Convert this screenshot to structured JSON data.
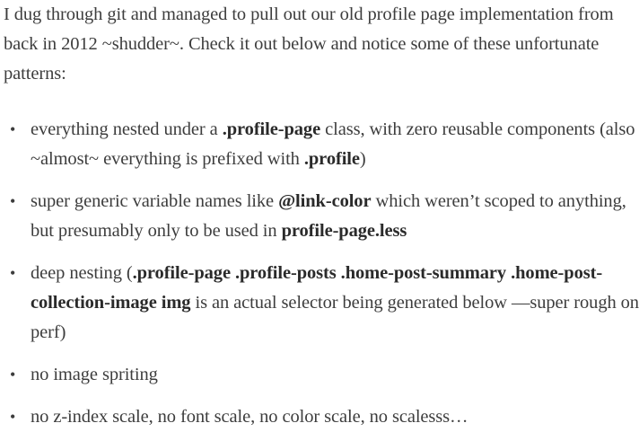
{
  "intro": {
    "text": "I dug through git and managed to pull out our old profile page implementation from back in 2012 ~shudder~. Check it out below and notice some of these unfortunate patterns:"
  },
  "bullets": [
    {
      "parts": [
        {
          "t": "everything nested under a ",
          "b": false
        },
        {
          "t": ".profile-page",
          "b": true
        },
        {
          "t": " class, with zero reusable components (also ~almost~ everything is prefixed with ",
          "b": false
        },
        {
          "t": ".profile",
          "b": true
        },
        {
          "t": ")",
          "b": false
        }
      ]
    },
    {
      "parts": [
        {
          "t": "super generic variable names like ",
          "b": false
        },
        {
          "t": "@link-color",
          "b": true
        },
        {
          "t": " which weren’t scoped to anything, but presumably only to be used in ",
          "b": false
        },
        {
          "t": "profile-page.less",
          "b": true
        }
      ]
    },
    {
      "parts": [
        {
          "t": "deep nesting (",
          "b": false
        },
        {
          "t": ".profile-page .profile-posts .home-post-summary .home-post-collection-image img",
          "b": true
        },
        {
          "t": " is an actual selector being generated below —super rough on perf)",
          "b": false
        }
      ]
    },
    {
      "parts": [
        {
          "t": "no image spriting",
          "b": false
        }
      ]
    },
    {
      "parts": [
        {
          "t": "no z-index scale, no font scale, no color scale, no scalesss…",
          "b": false
        }
      ]
    }
  ]
}
